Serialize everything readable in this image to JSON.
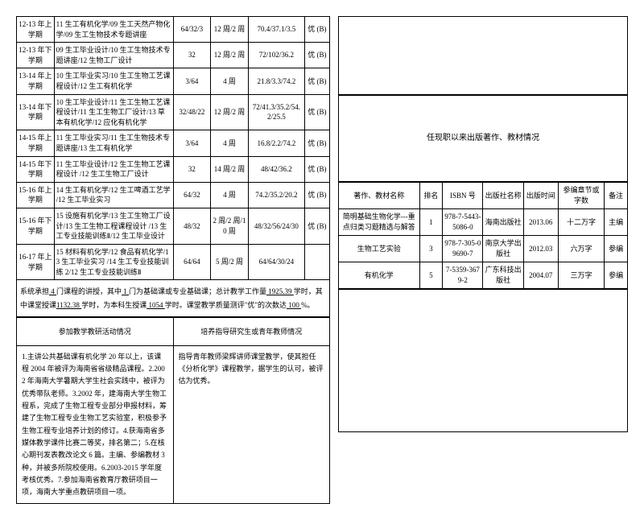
{
  "courses": [
    {
      "term": "12-13 年上学期",
      "name": "11 生工有机化学/09 生工天然产物化学/09 生工生物技术专题讲座",
      "c3": "64/32/3",
      "c4": "12 周/2 周",
      "c5": "70.4/37.1/3.5",
      "c6": "优 (B)"
    },
    {
      "term": "12-13 年下学期",
      "name": "09 生工毕业设计/10 生工生物技术专题讲座/12 生物工厂设计",
      "c3": "32",
      "c4": "12 周/2 周",
      "c5": "72/102/36.2",
      "c6": "优 (B)"
    },
    {
      "term": "13-14 年上学期",
      "name": "10 生工毕业实习/10 生工生物工艺课程设计/12 生工有机化学",
      "c3": "3/64",
      "c4": "4 周",
      "c5": "21.8/3.3/74.2",
      "c6": "优 (B)"
    },
    {
      "term": "13-14 年下学期",
      "name": "10 生工毕业设计/11 生工生物工艺课程设计/11 生工生物工厂设计/13 草本有机化学/12 应化有机化学",
      "c3": "32/48/22",
      "c4": "12 周/2 周",
      "c5": "72/41.3/35.2/54.2/25.5",
      "c6": "优 (B)"
    },
    {
      "term": "14-15 年上学期",
      "name": "11 生工毕业实习/11 生工生物技术专题讲座/13 生工有机化学",
      "c3": "3/64",
      "c4": "4 周",
      "c5": "16.8/2.2/74.2",
      "c6": "优 (B)"
    },
    {
      "term": "14-15 年下学期",
      "name": "11 生工毕业设计/12 生工生物工艺课程设计 /12 生工生物工厂设计",
      "c3": "32",
      "c4": "14 周/2 周",
      "c5": "48/42/36.2",
      "c6": "优 (B)"
    },
    {
      "term": "15-16 年上学期",
      "name": "14 生工有机化学/12 生工啤酒工艺学 /12 生工毕业实习",
      "c3": "64/32",
      "c4": "4 周",
      "c5": "74.2/35.2/20.2",
      "c6": "优 (B)"
    },
    {
      "term": "15-16 年下学期",
      "name": "15 设施有机化学/13 生工生物工厂设计/13 生工生物工程课程设计 /13 生工专业技能训练Ⅱ/12 生工毕业设计",
      "c3": "48/32",
      "c4": "2 周/2 周/10 周",
      "c5": "48/32/56/24/30",
      "c6": "优 (B)"
    },
    {
      "term": "16-17 年上学期",
      "name": "15 材料有机化学/12 食品有机化学/13 生工毕业实习 /14 生工专业技能训练 2/12 生工专业技能训练Ⅱ",
      "c3": "64/64",
      "c4": "5 周/2 周",
      "c5": "64/64/30/24",
      "c6": ""
    }
  ],
  "summary_parts": {
    "p1": "系统承担",
    "u1": "4",
    "p2": "门课程的讲授，其中",
    "u2": "1",
    "p3": "门为基础课或专业基础课；总计教学工作量",
    "u3": "1925.39",
    "p4": "学时，其中课堂授课",
    "u4": "1132.38",
    "p5": "学时，为本科生授课",
    "u5": "1054",
    "p6": "学时。课堂教学质量测评\"优\"的次数达",
    "u6": "100",
    "p7": "%。"
  },
  "headers": {
    "left": "参加教学教研活动情况",
    "right": "培养指导研究生或青年教师情况"
  },
  "narrative_left": "1.主讲公共基础课有机化学 20 年以上，该课程 2004 年被评为海南省省级精品课程。2.2002 年海南大学暑期大学生社会实践中，被评为优秀带队老师。3.2002 年，建海南大学生物工程系，完成了生物工程专业部分申报材料，筹建了生物工程专业生物工艺实验室，积极参予生物工程专业培养计划的修订。4.获海南省多媒体教学课件比赛二等奖，排名第二；5.在核心期刊发表教改论文 6 篇。主编、参编教材 3 种，并被多所院校使用。6.2003-2015 学年度考核优秀。7.参加海南省教育厅教研项目一项，海南大学重点教研项目一项。",
  "narrative_right": "指导青年教师梁辉讲师课堂教学，使其担任《分析化学》课程教学，据学生的认可，被评估为优秀。",
  "section2_title": "任现职以来出版著作、教材情况",
  "books_headers": [
    "著作、教材名称",
    "排名",
    "ISBN 号",
    "出版社名称",
    "出版时间",
    "参编章节或字数",
    "备注"
  ],
  "books": [
    {
      "title": "简明基础生物化学---重点归类习题精选与解答",
      "rank": "1",
      "isbn": "978-7-5443-5086-0",
      "pub": "海南出版社",
      "time": "2013.06",
      "words": "十二万字",
      "note": "主编"
    },
    {
      "title": "生物工艺实验",
      "rank": "3",
      "isbn": "978-7-305-09690-7",
      "pub": "南京大学出版社",
      "time": "2012.03",
      "words": "六万字",
      "note": "参编"
    },
    {
      "title": "有机化学",
      "rank": "5",
      "isbn": "7-5359-3679-2",
      "pub": "广东科技出版社",
      "time": "2004.07",
      "words": "三万字",
      "note": "参编"
    }
  ]
}
